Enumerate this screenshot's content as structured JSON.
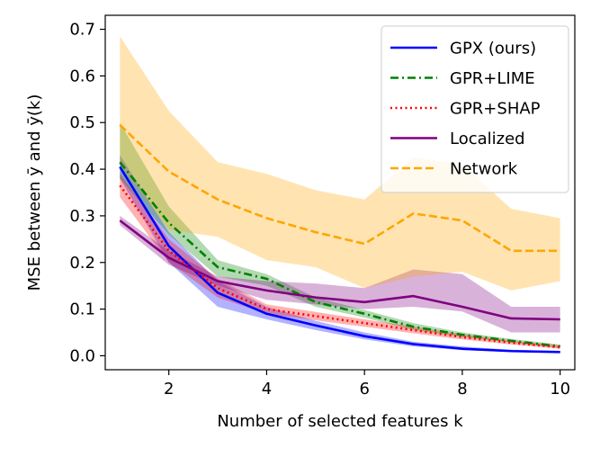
{
  "chart_data": {
    "type": "line",
    "xlabel": "Number of selected features k",
    "ylabel": "MSE between ȳ and ȳ(k)",
    "xlim": [
      0.7,
      10.3
    ],
    "ylim": [
      -0.03,
      0.73
    ],
    "xticks": [
      "2",
      "4",
      "6",
      "8",
      "10"
    ],
    "xtick_values": [
      2,
      4,
      6,
      8,
      10
    ],
    "yticks": [
      "0.0",
      "0.1",
      "0.2",
      "0.3",
      "0.4",
      "0.5",
      "0.6",
      "0.7"
    ],
    "ytick_values": [
      0.0,
      0.1,
      0.2,
      0.3,
      0.4,
      0.5,
      0.6,
      0.7
    ],
    "grid": false,
    "legend_placement": "top-right",
    "x": [
      1,
      2,
      3,
      4,
      5,
      6,
      7,
      8,
      9,
      10
    ],
    "series": [
      {
        "name": "GPX (ours)",
        "color": "#0000ff",
        "dash": "solid",
        "values": [
          0.405,
          0.235,
          0.135,
          0.09,
          0.065,
          0.042,
          0.025,
          0.015,
          0.01,
          0.008
        ],
        "lower": [
          0.38,
          0.2,
          0.105,
          0.078,
          0.055,
          0.035,
          0.02,
          0.012,
          0.008,
          0.006
        ],
        "upper": [
          0.43,
          0.265,
          0.16,
          0.105,
          0.075,
          0.05,
          0.03,
          0.02,
          0.013,
          0.01
        ]
      },
      {
        "name": "GPR+LIME",
        "color": "#008000",
        "dash": "dashdot",
        "values": [
          0.415,
          0.285,
          0.19,
          0.165,
          0.115,
          0.09,
          0.062,
          0.045,
          0.032,
          0.02
        ],
        "lower": [
          0.38,
          0.26,
          0.17,
          0.15,
          0.105,
          0.082,
          0.055,
          0.04,
          0.028,
          0.017
        ],
        "upper": [
          0.5,
          0.32,
          0.205,
          0.175,
          0.125,
          0.098,
          0.07,
          0.05,
          0.036,
          0.024
        ]
      },
      {
        "name": "GPR+SHAP",
        "color": "#ff0000",
        "dash": "dotted",
        "values": [
          0.365,
          0.225,
          0.145,
          0.1,
          0.085,
          0.07,
          0.055,
          0.04,
          0.028,
          0.018
        ],
        "lower": [
          0.34,
          0.2,
          0.125,
          0.09,
          0.076,
          0.062,
          0.048,
          0.035,
          0.024,
          0.015
        ],
        "upper": [
          0.39,
          0.25,
          0.165,
          0.11,
          0.094,
          0.078,
          0.062,
          0.046,
          0.033,
          0.022
        ]
      },
      {
        "name": "Localized",
        "color": "#800080",
        "dash": "solid",
        "values": [
          0.29,
          0.21,
          0.16,
          0.14,
          0.125,
          0.115,
          0.128,
          0.105,
          0.08,
          0.078
        ],
        "lower": [
          0.28,
          0.195,
          0.15,
          0.12,
          0.11,
          0.1,
          0.105,
          0.095,
          0.05,
          0.05
        ],
        "upper": [
          0.3,
          0.225,
          0.17,
          0.16,
          0.155,
          0.145,
          0.185,
          0.175,
          0.105,
          0.105
        ]
      },
      {
        "name": "Network",
        "color": "#ffa500",
        "dash": "dashed",
        "values": [
          0.495,
          0.395,
          0.335,
          0.295,
          0.265,
          0.24,
          0.305,
          0.29,
          0.225,
          0.225
        ],
        "lower": [
          0.41,
          0.27,
          0.255,
          0.205,
          0.19,
          0.145,
          0.17,
          0.18,
          0.14,
          0.16
        ],
        "upper": [
          0.685,
          0.525,
          0.415,
          0.39,
          0.355,
          0.335,
          0.425,
          0.41,
          0.315,
          0.295
        ]
      }
    ]
  }
}
